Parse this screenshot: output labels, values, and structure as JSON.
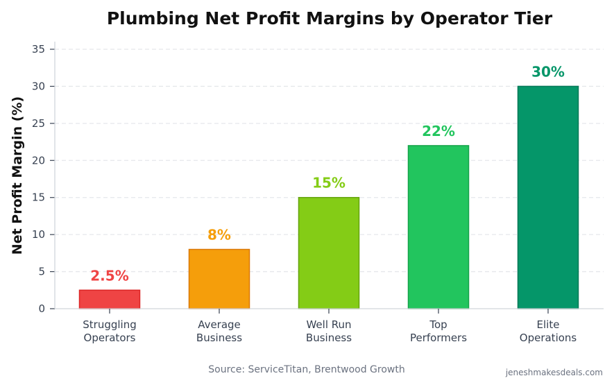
{
  "chart_data": {
    "type": "bar",
    "title": "Plumbing Net Profit Margins by Operator Tier",
    "xlabel": "",
    "ylabel": "Net Profit Margin (%)",
    "ylim": [
      0,
      36
    ],
    "yticks": [
      0,
      5,
      10,
      15,
      20,
      25,
      30,
      35
    ],
    "grid": true,
    "categories": [
      [
        "Struggling",
        "Operators"
      ],
      [
        "Average",
        "Business"
      ],
      [
        "Well Run",
        "Business"
      ],
      [
        "Top",
        "Performers"
      ],
      [
        "Elite",
        "Operations"
      ]
    ],
    "values": [
      2.5,
      8,
      15,
      22,
      30
    ],
    "data_labels": [
      "2.5%",
      "8%",
      "15%",
      "22%",
      "30%"
    ],
    "colors": [
      "#ef4444",
      "#f59e0b",
      "#84cc16",
      "#22c55e",
      "#059669"
    ],
    "edge_colors": [
      "#dc2626",
      "#d97706",
      "#65a30d",
      "#16a34a",
      "#047857"
    ]
  },
  "source": "Source: ServiceTitan, Brentwood Growth",
  "watermark": "jeneshmakesdeals.com"
}
